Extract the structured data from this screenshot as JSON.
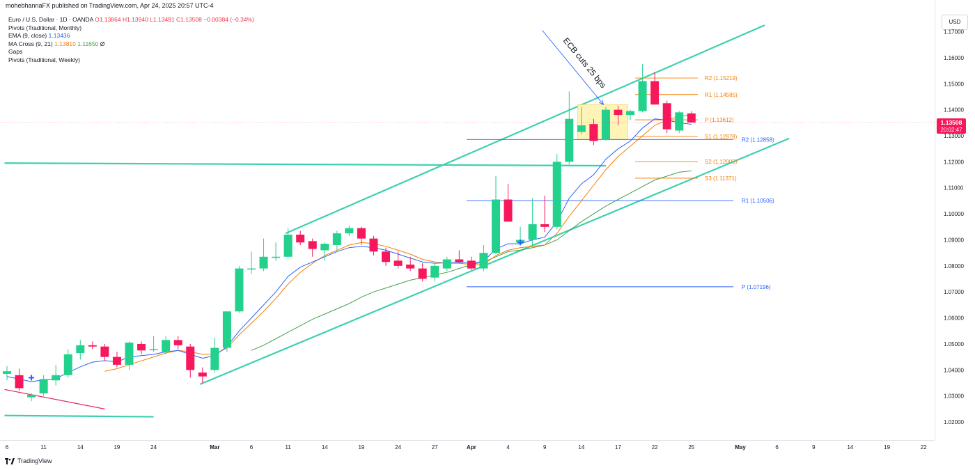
{
  "header": {
    "published": "mohebhannaFX published on TradingView.com, Apr 24, 2025 20:57 UTC-4"
  },
  "legend": {
    "symbol_line": "Euro / U.S. Dollar · 1D · OANDA",
    "ohlc": "O1.13864 H1.13940 L1.13491 C1.13508 −0.00384 (−0.34%)",
    "pivots_monthly": "Pivots (Traditional, Monthly)",
    "ema_label": "EMA (9, close)",
    "ema_value": "1.13436",
    "ma_cross_label": "MA Cross (9, 21)",
    "ma_cross_v1": "1.13810",
    "ma_cross_v2": "1.11650",
    "ma_cross_v3": "Ø",
    "gaps": "Gaps",
    "pivots_weekly": "Pivots (Traditional, Weekly)"
  },
  "currency_button": "USD",
  "footer": {
    "brand": "TradingView"
  },
  "colors": {
    "up": "#22d18b",
    "down": "#f7175b",
    "trend": "#3ecfb0",
    "ema": "#2962ff",
    "ma_fast": "#f57c00",
    "ma_slow": "#43a047",
    "monthly_pivot": "#2962ff",
    "weekly_pivot": "#f57c00",
    "box_fill": "#fff3b0",
    "box_stroke": "#f0d060",
    "price_tag": "#f7175b"
  },
  "chart_data": {
    "type": "candlestick",
    "symbol": "EURUSD",
    "ylim": [
      1.015,
      1.175
    ],
    "y_ticks": [
      "1.02000",
      "1.03000",
      "1.04000",
      "1.05000",
      "1.06000",
      "1.07000",
      "1.08000",
      "1.09000",
      "1.10000",
      "1.11000",
      "1.12000",
      "1.13000",
      "1.14000",
      "1.15000",
      "1.16000",
      "1.17000"
    ],
    "x_ticks": [
      {
        "label": "6",
        "day": 0
      },
      {
        "label": "11",
        "day": 3
      },
      {
        "label": "14",
        "day": 6
      },
      {
        "label": "19",
        "day": 9
      },
      {
        "label": "24",
        "day": 12
      },
      {
        "label": "Mar",
        "day": 17
      },
      {
        "label": "6",
        "day": 20
      },
      {
        "label": "11",
        "day": 23
      },
      {
        "label": "14",
        "day": 26
      },
      {
        "label": "19",
        "day": 29
      },
      {
        "label": "24",
        "day": 32
      },
      {
        "label": "27",
        "day": 35
      },
      {
        "label": "Apr",
        "day": 38
      },
      {
        "label": "4",
        "day": 41
      },
      {
        "label": "9",
        "day": 44
      },
      {
        "label": "14",
        "day": 47
      },
      {
        "label": "17",
        "day": 50
      },
      {
        "label": "22",
        "day": 53
      },
      {
        "label": "25",
        "day": 56
      },
      {
        "label": "May",
        "day": 60
      },
      {
        "label": "6",
        "day": 63
      },
      {
        "label": "9",
        "day": 66
      },
      {
        "label": "14",
        "day": 69
      },
      {
        "label": "19",
        "day": 72
      },
      {
        "label": "22",
        "day": 75
      }
    ],
    "candles": [
      {
        "o": 1.0385,
        "h": 1.0415,
        "l": 1.036,
        "c": 1.0395
      },
      {
        "o": 1.038,
        "h": 1.0405,
        "l": 1.032,
        "c": 1.033
      },
      {
        "o": 1.0295,
        "h": 1.031,
        "l": 1.028,
        "c": 1.0305
      },
      {
        "o": 1.031,
        "h": 1.038,
        "l": 1.03,
        "c": 1.0365
      },
      {
        "o": 1.036,
        "h": 1.042,
        "l": 1.034,
        "c": 1.038
      },
      {
        "o": 1.038,
        "h": 1.048,
        "l": 1.037,
        "c": 1.046
      },
      {
        "o": 1.0465,
        "h": 1.0515,
        "l": 1.044,
        "c": 1.0495
      },
      {
        "o": 1.0495,
        "h": 1.051,
        "l": 1.048,
        "c": 1.049
      },
      {
        "o": 1.049,
        "h": 1.05,
        "l": 1.0435,
        "c": 1.045
      },
      {
        "o": 1.045,
        "h": 1.047,
        "l": 1.041,
        "c": 1.042
      },
      {
        "o": 1.042,
        "h": 1.051,
        "l": 1.04,
        "c": 1.0505
      },
      {
        "o": 1.05,
        "h": 1.051,
        "l": 1.046,
        "c": 1.0475
      },
      {
        "o": 1.048,
        "h": 1.053,
        "l": 1.047,
        "c": 1.048
      },
      {
        "o": 1.047,
        "h": 1.053,
        "l": 1.046,
        "c": 1.0515
      },
      {
        "o": 1.0515,
        "h": 1.053,
        "l": 1.048,
        "c": 1.0495
      },
      {
        "o": 1.049,
        "h": 1.05,
        "l": 1.037,
        "c": 1.04
      },
      {
        "o": 1.039,
        "h": 1.041,
        "l": 1.035,
        "c": 1.0375
      },
      {
        "o": 1.04,
        "h": 1.0525,
        "l": 1.039,
        "c": 1.0485
      },
      {
        "o": 1.0485,
        "h": 1.0625,
        "l": 1.047,
        "c": 1.0625
      },
      {
        "o": 1.0625,
        "h": 1.08,
        "l": 1.062,
        "c": 1.079
      },
      {
        "o": 1.079,
        "h": 1.0855,
        "l": 1.077,
        "c": 1.079
      },
      {
        "o": 1.079,
        "h": 1.0905,
        "l": 1.078,
        "c": 1.0835
      },
      {
        "o": 1.0835,
        "h": 1.089,
        "l": 1.082,
        "c": 1.0835
      },
      {
        "o": 1.0835,
        "h": 1.0945,
        "l": 1.083,
        "c": 1.092
      },
      {
        "o": 1.092,
        "h": 1.0935,
        "l": 1.088,
        "c": 1.089
      },
      {
        "o": 1.0895,
        "h": 1.0905,
        "l": 1.0835,
        "c": 1.0865
      },
      {
        "o": 1.086,
        "h": 1.089,
        "l": 1.082,
        "c": 1.0885
      },
      {
        "o": 1.088,
        "h": 1.0935,
        "l": 1.086,
        "c": 1.0925
      },
      {
        "o": 1.0925,
        "h": 1.0955,
        "l": 1.0915,
        "c": 1.0945
      },
      {
        "o": 1.0945,
        "h": 1.095,
        "l": 1.088,
        "c": 1.0905
      },
      {
        "o": 1.0905,
        "h": 1.0915,
        "l": 1.084,
        "c": 1.0855
      },
      {
        "o": 1.0855,
        "h": 1.087,
        "l": 1.08,
        "c": 1.0815
      },
      {
        "o": 1.082,
        "h": 1.0855,
        "l": 1.079,
        "c": 1.08
      },
      {
        "o": 1.0805,
        "h": 1.0835,
        "l": 1.078,
        "c": 1.079
      },
      {
        "o": 1.079,
        "h": 1.081,
        "l": 1.074,
        "c": 1.075
      },
      {
        "o": 1.0755,
        "h": 1.081,
        "l": 1.074,
        "c": 1.08
      },
      {
        "o": 1.079,
        "h": 1.0835,
        "l": 1.078,
        "c": 1.0825
      },
      {
        "o": 1.0825,
        "h": 1.086,
        "l": 1.081,
        "c": 1.0815
      },
      {
        "o": 1.082,
        "h": 1.0835,
        "l": 1.0785,
        "c": 1.079
      },
      {
        "o": 1.079,
        "h": 1.088,
        "l": 1.078,
        "c": 1.085
      },
      {
        "o": 1.085,
        "h": 1.1145,
        "l": 1.0845,
        "c": 1.1055
      },
      {
        "o": 1.1055,
        "h": 1.1115,
        "l": 1.097,
        "c": 1.097
      },
      {
        "o": 1.089,
        "h": 1.095,
        "l": 1.088,
        "c": 1.09
      },
      {
        "o": 1.09,
        "h": 1.106,
        "l": 1.088,
        "c": 1.096
      },
      {
        "o": 1.096,
        "h": 1.107,
        "l": 1.093,
        "c": 1.095
      },
      {
        "o": 1.095,
        "h": 1.123,
        "l": 1.094,
        "c": 1.12
      },
      {
        "o": 1.12,
        "h": 1.147,
        "l": 1.119,
        "c": 1.1365
      },
      {
        "o": 1.1315,
        "h": 1.141,
        "l": 1.1305,
        "c": 1.134
      },
      {
        "o": 1.1345,
        "h": 1.1365,
        "l": 1.1265,
        "c": 1.128
      },
      {
        "o": 1.1285,
        "h": 1.141,
        "l": 1.128,
        "c": 1.14
      },
      {
        "o": 1.14,
        "h": 1.1415,
        "l": 1.134,
        "c": 1.138
      },
      {
        "o": 1.138,
        "h": 1.14,
        "l": 1.136,
        "c": 1.1395
      },
      {
        "o": 1.1395,
        "h": 1.1575,
        "l": 1.139,
        "c": 1.151
      },
      {
        "o": 1.151,
        "h": 1.1545,
        "l": 1.142,
        "c": 1.142
      },
      {
        "o": 1.1425,
        "h": 1.1435,
        "l": 1.131,
        "c": 1.1325
      },
      {
        "o": 1.132,
        "h": 1.1395,
        "l": 1.131,
        "c": 1.139
      },
      {
        "o": 1.1386,
        "h": 1.1394,
        "l": 1.1349,
        "c": 1.1351
      }
    ],
    "ema9": [
      1.0375,
      1.0365,
      1.0355,
      1.0362,
      1.0367,
      1.039,
      1.0412,
      1.043,
      1.0436,
      1.0431,
      1.045,
      1.0455,
      1.046,
      1.047,
      1.0475,
      1.046,
      1.0445,
      1.0455,
      1.049,
      1.055,
      1.06,
      1.065,
      1.07,
      1.076,
      1.0795,
      1.0815,
      1.0835,
      1.0855,
      1.087,
      1.0875,
      1.087,
      1.086,
      1.0845,
      1.083,
      1.0815,
      1.081,
      1.0812,
      1.0813,
      1.081,
      1.0818,
      1.0865,
      1.0885,
      1.0885,
      1.09,
      1.091,
      1.097,
      1.106,
      1.1115,
      1.115,
      1.121,
      1.125,
      1.128,
      1.133,
      1.1365,
      1.136,
      1.135,
      1.1344
    ],
    "ma_fast": [
      null,
      null,
      null,
      null,
      null,
      null,
      null,
      null,
      1.0395,
      1.0405,
      1.042,
      1.0435,
      1.045,
      1.0465,
      1.0475,
      1.047,
      1.046,
      1.046,
      1.0485,
      1.0535,
      1.058,
      1.0625,
      1.0675,
      1.073,
      1.0775,
      1.081,
      1.084,
      1.086,
      1.088,
      1.089,
      1.0885,
      1.0875,
      1.086,
      1.0845,
      1.0825,
      1.0815,
      1.081,
      1.081,
      1.0805,
      1.0805,
      1.084,
      1.086,
      1.087,
      1.0875,
      1.088,
      1.0925,
      1.099,
      1.105,
      1.111,
      1.117,
      1.122,
      1.126,
      1.13,
      1.134,
      1.136,
      1.1375,
      1.1381
    ],
    "ma_slow": [
      null,
      null,
      null,
      null,
      null,
      null,
      null,
      null,
      null,
      null,
      null,
      null,
      null,
      null,
      null,
      null,
      null,
      null,
      null,
      null,
      1.0475,
      1.0495,
      1.052,
      1.0545,
      1.057,
      1.0595,
      1.0615,
      1.0635,
      1.0655,
      1.068,
      1.07,
      1.0715,
      1.073,
      1.0745,
      1.0755,
      1.0765,
      1.0775,
      1.079,
      1.0805,
      1.0815,
      1.0835,
      1.0855,
      1.086,
      1.087,
      1.088,
      1.09,
      1.0935,
      1.097,
      1.1,
      1.103,
      1.1055,
      1.108,
      1.1105,
      1.113,
      1.1145,
      1.116,
      1.1165
    ],
    "monthly_pivots": [
      {
        "label": "R2 (1.12858)",
        "value": 1.12858
      },
      {
        "label": "R1 (1.10506)",
        "value": 1.10506
      },
      {
        "label": "P (1.07196)",
        "value": 1.07196
      }
    ],
    "weekly_pivots": [
      {
        "label": "R2 (1.15219)",
        "value": 1.15219
      },
      {
        "label": "R1 (1.14585)",
        "value": 1.14585
      },
      {
        "label": "P (1.13612)",
        "value": 1.13612
      },
      {
        "label": "S1 (1.12978)",
        "value": 1.12978
      },
      {
        "label": "S2 (1.12005)",
        "value": 1.12005
      },
      {
        "label": "S3 (1.11371)",
        "value": 1.11371
      }
    ],
    "trendlines": [
      {
        "x1": -0.2,
        "y1": 1.0225,
        "x2": 12.0,
        "y2": 1.022
      },
      {
        "x1": -0.2,
        "y1": 1.1195,
        "x2": 49.0,
        "y2": 1.1185
      },
      {
        "x1": 15.8,
        "y1": 1.0345,
        "x2": 64.0,
        "y2": 1.129
      },
      {
        "x1": 22.8,
        "y1": 1.0925,
        "x2": 62.0,
        "y2": 1.1725
      }
    ],
    "pink_line": {
      "x1": -0.2,
      "y1": 1.0325,
      "x2": 8.0,
      "y2": 1.025
    },
    "box": {
      "x1": 46.7,
      "x2": 50.8,
      "y_top": 1.142,
      "y_bottom": 1.1285
    },
    "annotation": "ECB cuts 25 bps",
    "annotation_points": {
      "x1": 43.8,
      "y1": 1.1705,
      "x2": 48.8,
      "y2": 1.142
    },
    "gap_markers": [
      {
        "day": 2,
        "value": 1.037
      },
      {
        "day": 42,
        "value": 1.089
      }
    ],
    "last_price": "1.13508",
    "last_price_value": 1.13508,
    "countdown": "20:02:47"
  }
}
